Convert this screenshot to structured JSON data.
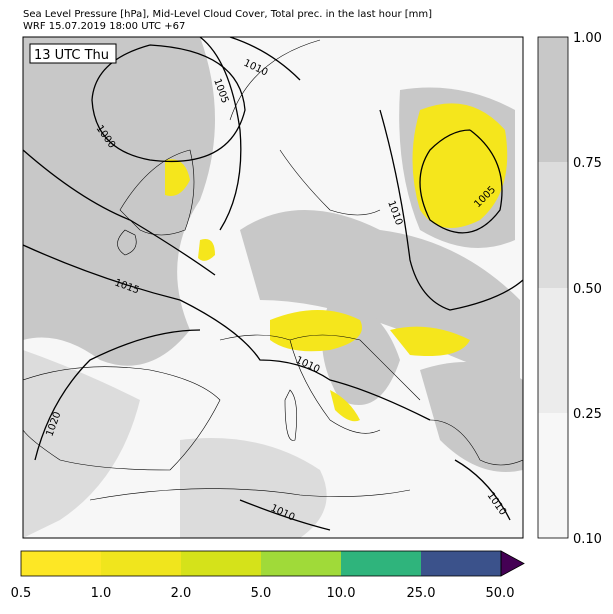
{
  "header": {
    "title": "Sea Level Pressure [hPa], Mid-Level Cloud Cover, Total prec. in the last hour [mm]",
    "subtitle": "WRF 15.07.2019 18:00 UTC +67"
  },
  "map": {
    "time_label": "13 UTC Thu",
    "isobar_labels": [
      "1010",
      "1005",
      "1000",
      "1015",
      "1020",
      "1010",
      "1010",
      "1005",
      "1010",
      "1010"
    ]
  },
  "cloud_colorbar": {
    "ticks": [
      "0.10",
      "0.25",
      "0.50",
      "0.75",
      "1.00"
    ]
  },
  "precip_colorbar": {
    "ticks": [
      "0.5",
      "1.0",
      "2.0",
      "5.0",
      "10.0",
      "25.0",
      "50.0"
    ]
  }
}
